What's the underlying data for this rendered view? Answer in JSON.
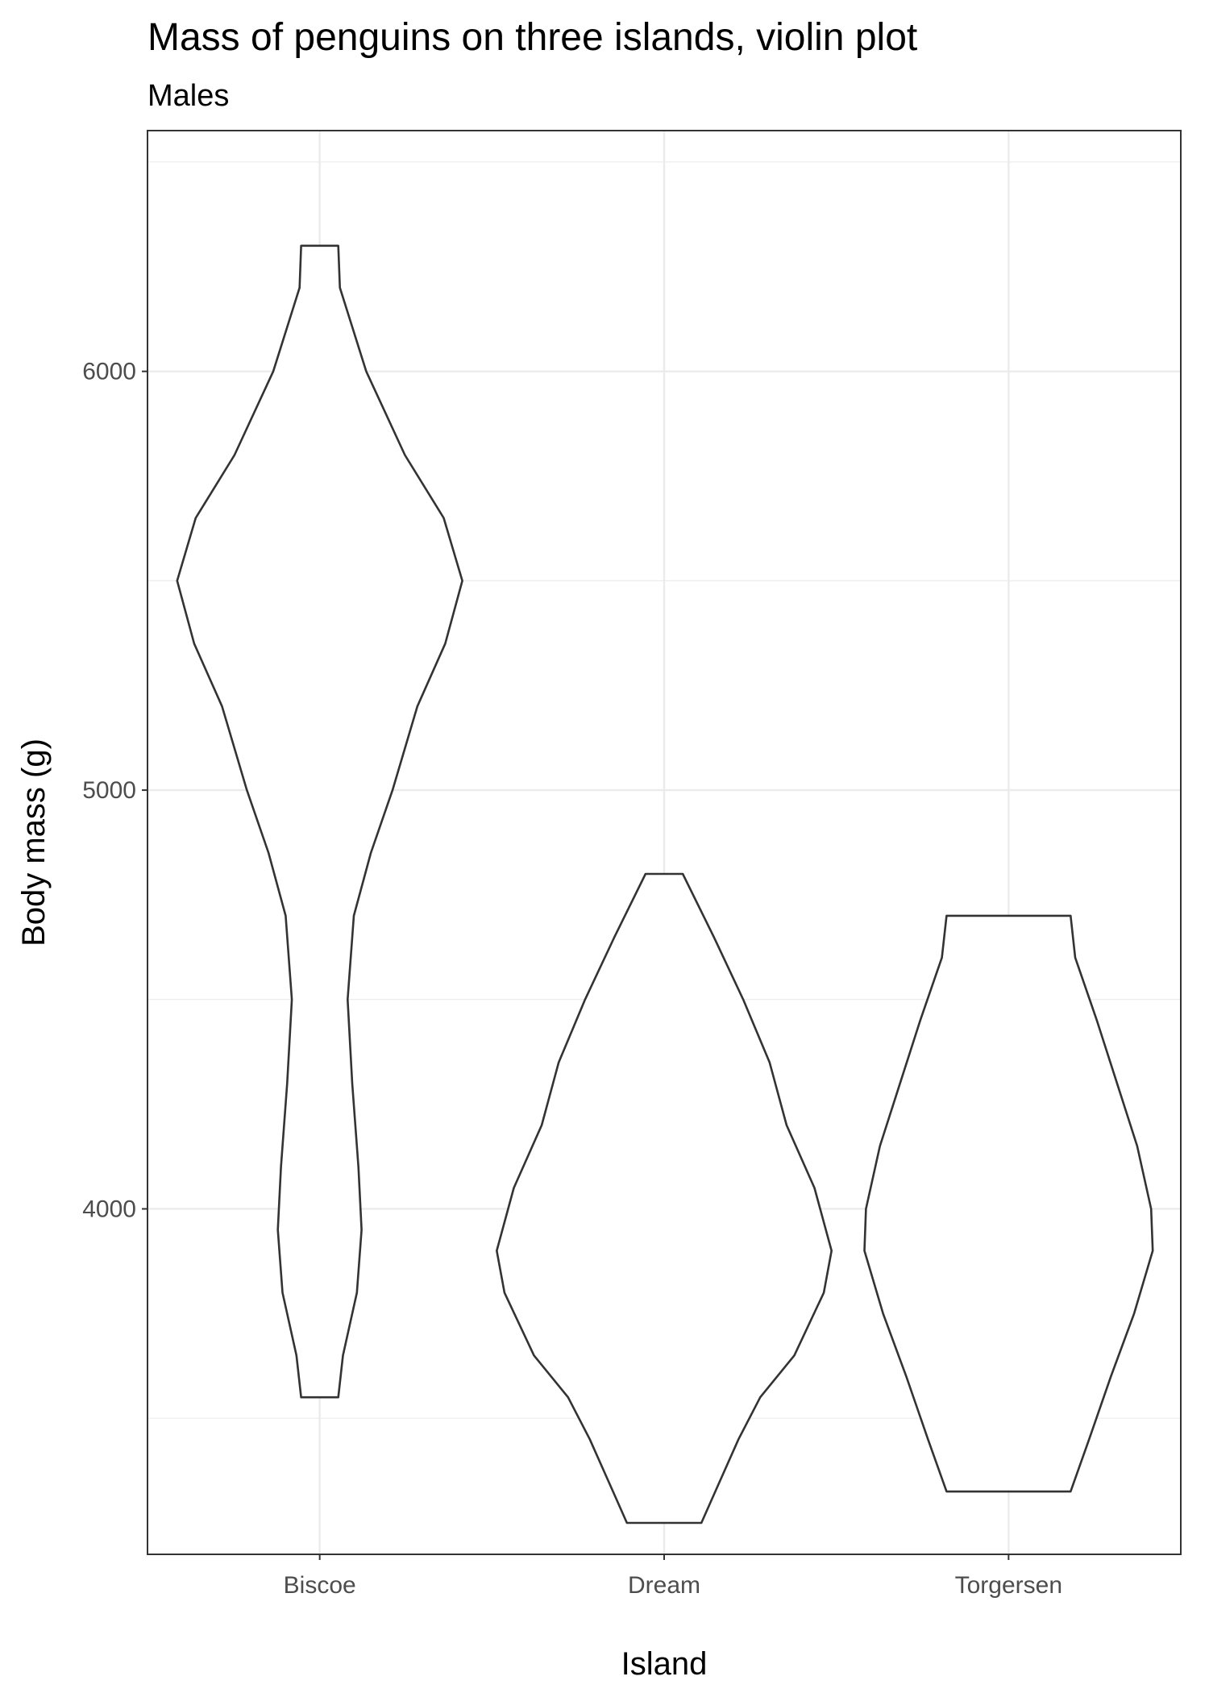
{
  "chart_data": {
    "type": "violin",
    "title": "Mass of penguins on three islands, violin plot",
    "subtitle": "Males",
    "xlabel": "Island",
    "ylabel": "Body mass (g)",
    "ylim": [
      3175,
      6575
    ],
    "yticks": [
      4000,
      5000,
      6000
    ],
    "categories": [
      "Biscoe",
      "Dream",
      "Torgersen"
    ],
    "grid": true,
    "series": [
      {
        "category": "Biscoe",
        "min": 3550,
        "max": 6300,
        "density": [
          [
            3550,
            0.12
          ],
          [
            3650,
            0.15
          ],
          [
            3800,
            0.24
          ],
          [
            3950,
            0.27
          ],
          [
            4100,
            0.25
          ],
          [
            4300,
            0.21
          ],
          [
            4500,
            0.18
          ],
          [
            4700,
            0.22
          ],
          [
            4850,
            0.33
          ],
          [
            5000,
            0.47
          ],
          [
            5200,
            0.63
          ],
          [
            5350,
            0.81
          ],
          [
            5500,
            0.92
          ],
          [
            5650,
            0.8
          ],
          [
            5800,
            0.55
          ],
          [
            6000,
            0.3
          ],
          [
            6200,
            0.13
          ],
          [
            6300,
            0.12
          ]
        ]
      },
      {
        "category": "Dream",
        "min": 3250,
        "max": 4800,
        "density": [
          [
            3250,
            0.24
          ],
          [
            3350,
            0.36
          ],
          [
            3450,
            0.48
          ],
          [
            3550,
            0.62
          ],
          [
            3650,
            0.84
          ],
          [
            3800,
            1.03
          ],
          [
            3900,
            1.08
          ],
          [
            4050,
            0.97
          ],
          [
            4200,
            0.79
          ],
          [
            4350,
            0.68
          ],
          [
            4500,
            0.51
          ],
          [
            4650,
            0.32
          ],
          [
            4800,
            0.12
          ]
        ]
      },
      {
        "category": "Torgersen",
        "min": 3325,
        "max": 4700,
        "density": [
          [
            3325,
            0.4
          ],
          [
            3450,
            0.52
          ],
          [
            3600,
            0.66
          ],
          [
            3750,
            0.81
          ],
          [
            3900,
            0.93
          ],
          [
            4000,
            0.92
          ],
          [
            4150,
            0.83
          ],
          [
            4300,
            0.7
          ],
          [
            4450,
            0.57
          ],
          [
            4600,
            0.43
          ],
          [
            4700,
            0.4
          ]
        ]
      }
    ]
  }
}
